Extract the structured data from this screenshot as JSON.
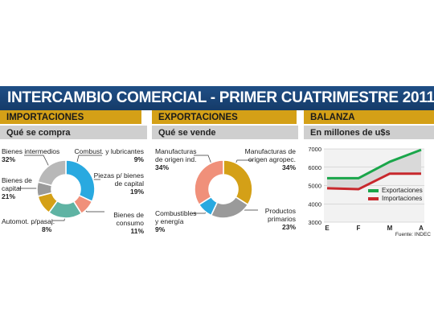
{
  "banner": {
    "title": "INTERCAMBIO COMERCIAL - PRIMER CUATRIMESTRE 2011"
  },
  "colors": {
    "banner": "#1d4a80",
    "gold": "#d4a017",
    "subbar": "#cfcfcf"
  },
  "panels": {
    "importaciones": {
      "header": "IMPORTACIONES",
      "subheader": "Qué se compra"
    },
    "exportaciones": {
      "header": "EXPORTACIONES",
      "subheader": "Qué se vende"
    },
    "balanza": {
      "header": "BALANZA",
      "subheader": "En millones de u$s"
    }
  },
  "chart_data": [
    {
      "type": "pie",
      "title": "IMPORTACIONES",
      "subtitle": "Qué se compra",
      "slices": [
        {
          "label": "Bienes intermedios",
          "pct": "32%",
          "value": 32,
          "color": "#29a9e0"
        },
        {
          "label": "Combust. y lubricantes",
          "pct": "9%",
          "value": 9,
          "color": "#f0907a"
        },
        {
          "label": "Piezas p/ bienes de capital",
          "pct": "19%",
          "value": 19,
          "color": "#5fb3a3"
        },
        {
          "label": "Bienes de consumo",
          "pct": "11%",
          "value": 11,
          "color": "#d4a017"
        },
        {
          "label": "Automot. p/pasaj.",
          "pct": "8%",
          "value": 8,
          "color": "#9a9a9a"
        },
        {
          "label": "Bienes de capital",
          "pct": "21%",
          "value": 21,
          "color": "#b8b8b8"
        }
      ]
    },
    {
      "type": "pie",
      "title": "EXPORTACIONES",
      "subtitle": "Qué se vende",
      "slices": [
        {
          "label": "Manufacturas de origen agropec.",
          "pct": "34%",
          "value": 34,
          "color": "#d4a017"
        },
        {
          "label": "Productos primarios",
          "pct": "23%",
          "value": 23,
          "color": "#9a9a9a"
        },
        {
          "label": "Combustibles y energía",
          "pct": "9%",
          "value": 9,
          "color": "#29a9e0"
        },
        {
          "label": "Manufacturas de origen ind.",
          "pct": "34%",
          "value": 34,
          "color": "#f0907a"
        }
      ]
    },
    {
      "type": "line",
      "title": "BALANZA",
      "subtitle": "En millones de u$s",
      "categories": [
        "E",
        "F",
        "M",
        "A"
      ],
      "ylim": [
        3000,
        7000
      ],
      "yticks": [
        "7000",
        "6000",
        "5000",
        "4000",
        "3000"
      ],
      "grid": true,
      "series": [
        {
          "name": "Exportaciones",
          "color": "#1aa64a",
          "values": [
            5400,
            5400,
            6300,
            6950
          ]
        },
        {
          "name": "Importaciones",
          "color": "#c8282d",
          "values": [
            4850,
            4800,
            5650,
            5650
          ]
        }
      ],
      "source": "Fuente: INDEC"
    }
  ]
}
